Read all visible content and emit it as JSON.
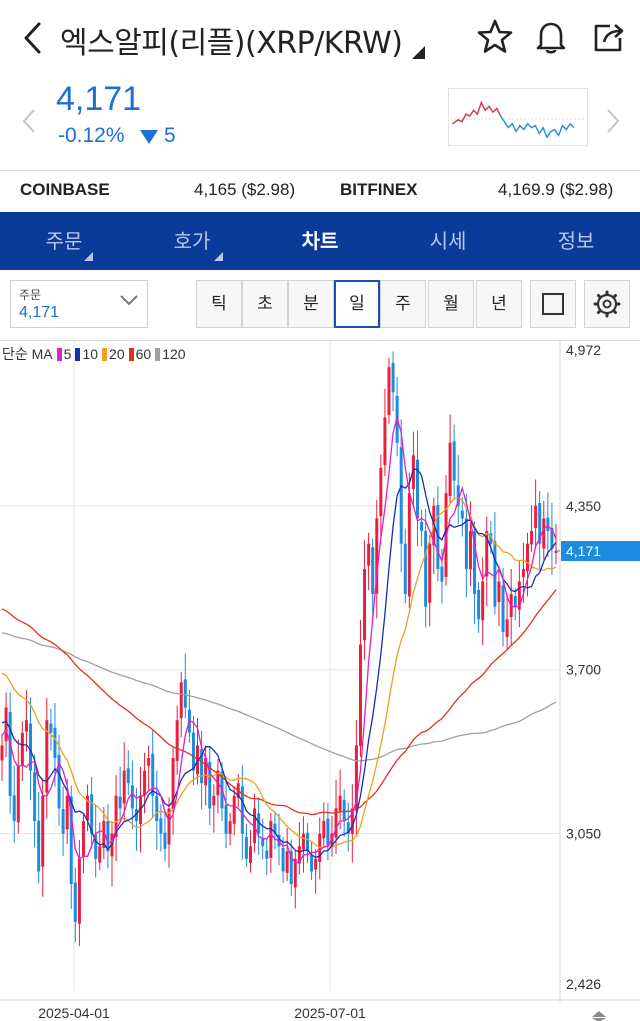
{
  "header": {
    "title": "엑스알피(리플)(XRP/KRW)",
    "icons": [
      "back-arrow-icon",
      "star-icon",
      "bell-icon",
      "share-icon"
    ]
  },
  "price": {
    "value": "4,171",
    "change_pct": "-0.12%",
    "change_amount": "5",
    "color": "#1b6fd6"
  },
  "exchanges": [
    {
      "name": "COINBASE",
      "value": "4,165 ($2.98)"
    },
    {
      "name": "BITFINEX",
      "value": "4,169.9 ($2.98)"
    }
  ],
  "tabs": [
    {
      "label": "주문",
      "active": false
    },
    {
      "label": "호가",
      "active": false
    },
    {
      "label": "차트",
      "active": true
    },
    {
      "label": "시세",
      "active": false
    },
    {
      "label": "정보",
      "active": false
    }
  ],
  "order_select": {
    "label": "주문",
    "value": "4,171"
  },
  "periods": [
    {
      "label": "틱",
      "active": false
    },
    {
      "label": "초",
      "active": false
    },
    {
      "label": "분",
      "active": false
    },
    {
      "label": "일",
      "active": true
    },
    {
      "label": "주",
      "active": false
    },
    {
      "label": "월",
      "active": false
    },
    {
      "label": "년",
      "active": false
    }
  ],
  "ma_legend": {
    "prefix": "단순 MA",
    "items": [
      {
        "label": "5",
        "color": "#e020c8"
      },
      {
        "label": "10",
        "color": "#1a2fb0"
      },
      {
        "label": "20",
        "color": "#f0a020"
      },
      {
        "label": "60",
        "color": "#e03020"
      },
      {
        "label": "120",
        "color": "#a0a0a0"
      }
    ]
  },
  "chart_data": {
    "type": "candlestick",
    "y_ticks": [
      "4,972",
      "4,350",
      "3,700",
      "3,050",
      "2,426"
    ],
    "y_tick_values": [
      4972,
      4350,
      3700,
      3050,
      2426
    ],
    "ylim": [
      2426,
      4972
    ],
    "x_ticks": [
      "2025-04-01",
      "2025-07-01"
    ],
    "current_price_label": "4,171",
    "current_price": 4171,
    "grid": true,
    "up_color": "#e8203c",
    "down_color": "#1c8be0",
    "ma_colors": {
      "ma5": "#e020c8",
      "ma10": "#1a2fb0",
      "ma20": "#f0a020",
      "ma60": "#e03020",
      "ma120": "#a0a0a0"
    },
    "closes": [
      3400,
      3550,
      3200,
      3100,
      3320,
      3450,
      3500,
      3300,
      3100,
      2900,
      3200,
      3500,
      3450,
      3350,
      3150,
      3050,
      3200,
      2850,
      2700,
      2950,
      3100,
      3200,
      3050,
      2950,
      3000,
      3100,
      2980,
      3050,
      3200,
      3150,
      3300,
      3250,
      3150,
      3100,
      3200,
      3300,
      3350,
      3200,
      3100,
      3050,
      2990,
      3150,
      3350,
      3500,
      3650,
      3550,
      3450,
      3300,
      3400,
      3250,
      3350,
      3150,
      3200,
      3300,
      3150,
      3050,
      3100,
      3200,
      3250,
      3050,
      2950,
      3000,
      3150,
      3050,
      3000,
      2950,
      3100,
      3050,
      3000,
      2900,
      2980,
      2850,
      2950,
      3000,
      3050,
      2980,
      2900,
      2950,
      3050,
      3100,
      3000,
      3050,
      3150,
      3200,
      3100,
      3050,
      3150,
      3400,
      3800,
      4100,
      4200,
      4000,
      4300,
      4500,
      4700,
      4900,
      4800,
      4600,
      4200,
      4000,
      4400,
      4550,
      4300,
      4250,
      3950,
      4200,
      4350,
      4100,
      4050,
      4400,
      4600,
      4450,
      4350,
      4300,
      4100,
      4250,
      4000,
      3900,
      4050,
      4250,
      4200,
      3950,
      4050,
      3850,
      3900,
      4000,
      3950,
      4050,
      4100,
      4200,
      4250,
      4350,
      4200,
      4300,
      4250,
      4180,
      4171
    ]
  }
}
